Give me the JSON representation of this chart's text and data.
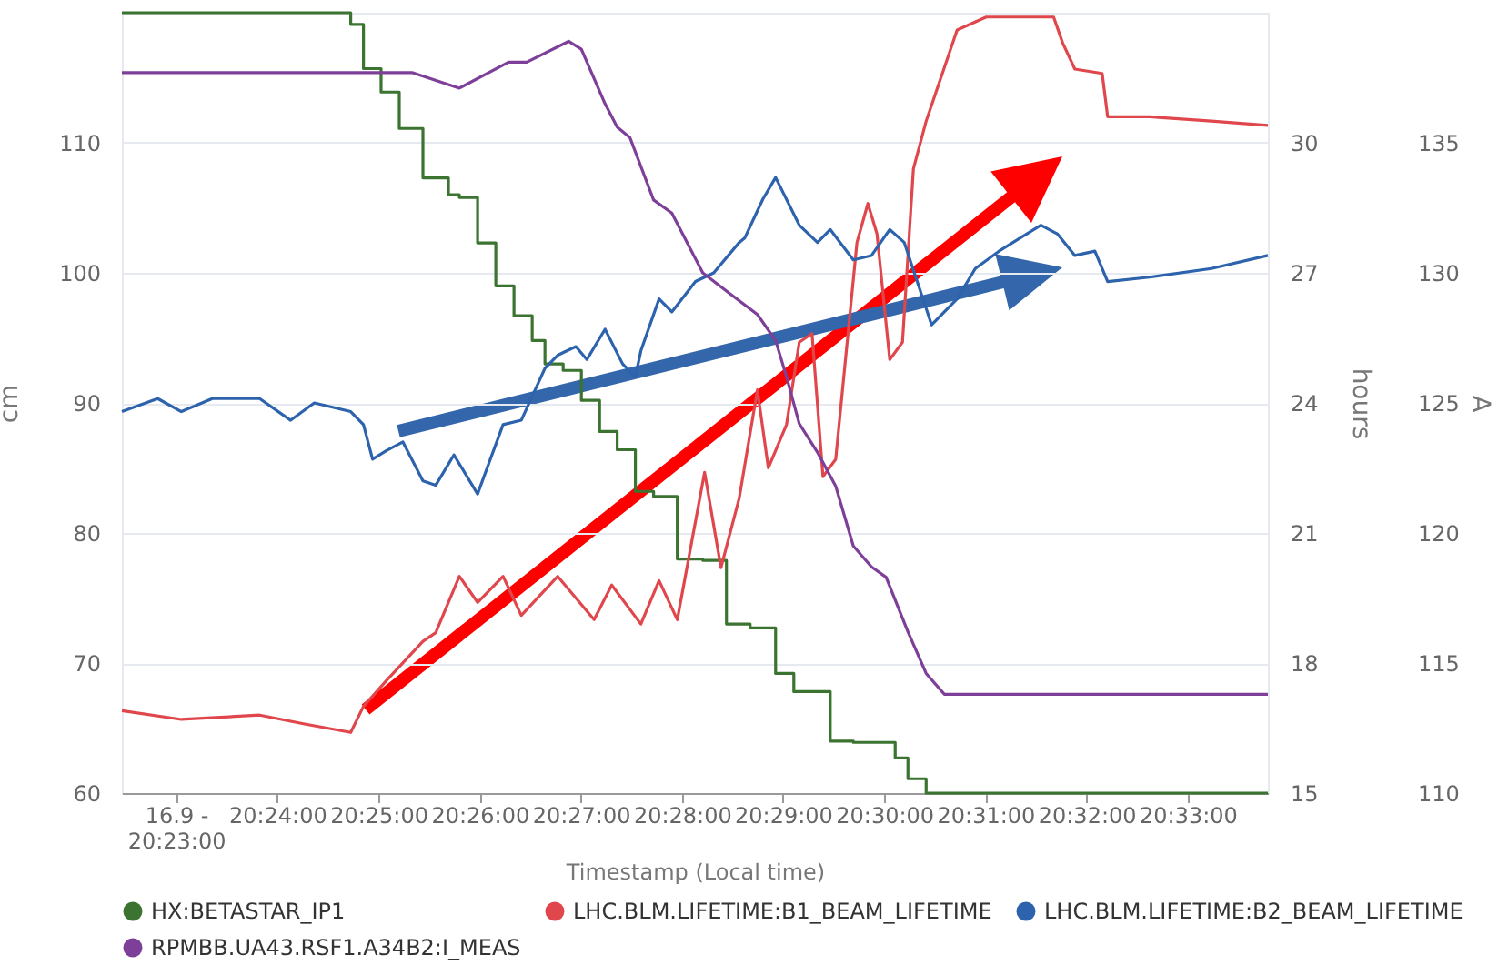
{
  "chart_data": {
    "type": "line",
    "xlabel": "Timestamp (Local time)",
    "ylabel": "cm",
    "y2label": "hours",
    "y3label": "A",
    "xlim": [
      20.3744,
      20.5632
    ],
    "xticks": [
      {
        "value": 20.38333,
        "label": "16.9 - 20:23:00"
      },
      {
        "value": 20.4,
        "label": "20:24:00"
      },
      {
        "value": 20.41667,
        "label": "20:25:00"
      },
      {
        "value": 20.43333,
        "label": "20:26:00"
      },
      {
        "value": 20.45,
        "label": "20:27:00"
      },
      {
        "value": 20.46667,
        "label": "20:28:00"
      },
      {
        "value": 20.48333,
        "label": "20:29:00"
      },
      {
        "value": 20.5,
        "label": "20:30:00"
      },
      {
        "value": 20.51667,
        "label": "20:31:00"
      },
      {
        "value": 20.53333,
        "label": "20:32:00"
      },
      {
        "value": 20.55,
        "label": "20:33:00"
      }
    ],
    "ylim": [
      60,
      120
    ],
    "yticks": [
      60,
      70,
      80,
      90,
      100,
      110
    ],
    "y2lim": [
      15,
      33
    ],
    "y2ticks": [
      15,
      18,
      21,
      24,
      27,
      30
    ],
    "y3lim": [
      110,
      140
    ],
    "y3ticks": [
      110,
      115,
      120,
      125,
      130,
      135
    ],
    "grid": "y",
    "legend": "bottom",
    "marker": "none",
    "line_style": "solid",
    "series": [
      {
        "name": "HX:BETASTAR_IP1",
        "type": "step",
        "color": "#3b7430",
        "x": [
          20.3744,
          20.4121,
          20.4142,
          20.4171,
          20.4201,
          20.424,
          20.4282,
          20.43,
          20.433,
          20.436,
          20.439,
          20.442,
          20.4441,
          20.4471,
          20.4501,
          20.4531,
          20.456,
          20.459,
          20.462,
          20.4659,
          20.4701,
          20.474,
          20.4779,
          20.4821,
          20.4851,
          20.4869,
          20.4911,
          20.4949,
          20.5018,
          20.5039,
          20.5069,
          20.509,
          20.5632
        ],
        "values": [
          120,
          119.1,
          115.7,
          113.9,
          111.1,
          107.3,
          106,
          105.8,
          102.3,
          99,
          96.7,
          94.8,
          93,
          92.5,
          90.2,
          87.8,
          86.4,
          83.2,
          82.8,
          78,
          77.9,
          73,
          72.7,
          69.2,
          67.8,
          67.8,
          64,
          63.9,
          62.7,
          61.1,
          60,
          60,
          60
        ]
      },
      {
        "name": "LHC.BLM.LIFETIME:B1_BEAM_LIFETIME",
        "type": "line",
        "axis": "y2",
        "color": "#e0474c",
        "x": [
          20.3744,
          20.3842,
          20.3971,
          20.4043,
          20.4121,
          20.4142,
          20.418,
          20.424,
          20.4261,
          20.43,
          20.433,
          20.4372,
          20.4402,
          20.4462,
          20.4522,
          20.4551,
          20.4599,
          20.4629,
          20.4659,
          20.4704,
          20.4731,
          20.4761,
          20.4791,
          20.4809,
          20.4839,
          20.486,
          20.4881,
          20.4899,
          20.492,
          20.4955,
          20.4973,
          20.4988,
          20.5009,
          20.503,
          20.5048,
          20.5069,
          20.512,
          20.5168,
          20.521,
          20.5279,
          20.5294,
          20.5314,
          20.5359,
          20.5368,
          20.5437,
          20.5539,
          20.5632
        ],
        "values": [
          16.9,
          16.7,
          16.8,
          16.6,
          16.4,
          17,
          17.6,
          18.5,
          18.7,
          20,
          19.4,
          20,
          19.1,
          20,
          19,
          19.8,
          18.9,
          19.9,
          19,
          22.4,
          20.2,
          21.8,
          24.3,
          22.5,
          23.5,
          25.4,
          25.6,
          22.3,
          22.7,
          27.7,
          28.6,
          27.9,
          25,
          25.4,
          29.4,
          30.5,
          32.6,
          32.9,
          32.9,
          32.9,
          32.3,
          31.7,
          31.6,
          30.6,
          30.6,
          30.5,
          30.4
        ]
      },
      {
        "name": "LHC.BLM.LIFETIME:B2_BEAM_LIFETIME",
        "type": "line",
        "axis": "y2",
        "color": "#2d63ad",
        "x": [
          20.3744,
          20.3803,
          20.3842,
          20.3893,
          20.3971,
          20.4022,
          20.4061,
          20.4121,
          20.4142,
          20.4157,
          20.418,
          20.4207,
          20.424,
          20.4261,
          20.4291,
          20.433,
          20.4372,
          20.4402,
          20.4441,
          20.4462,
          20.4492,
          20.451,
          20.454,
          20.4569,
          20.459,
          20.4599,
          20.4629,
          20.465,
          20.4689,
          20.4719,
          20.4761,
          20.477,
          20.48,
          20.4821,
          20.486,
          20.489,
          20.4911,
          20.4949,
          20.4979,
          20.5009,
          20.5033,
          20.5078,
          20.512,
          20.515,
          20.5189,
          20.5258,
          20.5285,
          20.5314,
          20.5347,
          20.5368,
          20.5437,
          20.5539,
          20.5632
        ],
        "values": [
          23.8,
          24.1,
          23.8,
          24.1,
          24.1,
          23.6,
          24,
          23.8,
          23.5,
          22.7,
          22.9,
          23.1,
          22.2,
          22.1,
          22.8,
          21.9,
          23.5,
          23.6,
          24.8,
          25.1,
          25.3,
          25,
          25.7,
          24.9,
          24.6,
          25.2,
          26.4,
          26.1,
          26.8,
          27,
          27.7,
          27.8,
          28.7,
          29.2,
          28.1,
          27.7,
          28,
          27.3,
          27.4,
          28,
          27.7,
          25.8,
          26.4,
          27.1,
          27.5,
          28.1,
          27.9,
          27.4,
          27.5,
          26.8,
          26.9,
          27.1,
          27.4
        ]
      },
      {
        "name": "RPMBB.UA43.RSF1.A34B2:I_MEAS",
        "type": "line",
        "axis": "y3",
        "color": "#7d3f98",
        "x": [
          20.3744,
          20.418,
          20.4222,
          20.43,
          20.4381,
          20.4411,
          20.448,
          20.4501,
          20.454,
          20.456,
          20.4581,
          20.462,
          20.465,
          20.4701,
          20.474,
          20.4791,
          20.4821,
          20.4839,
          20.486,
          20.489,
          20.492,
          20.4949,
          20.4979,
          20.5003,
          20.5039,
          20.5069,
          20.5099,
          20.5632
        ],
        "values": [
          137.7,
          137.7,
          137.7,
          137.1,
          138.1,
          138.1,
          138.9,
          138.6,
          136.5,
          135.6,
          135.2,
          132.8,
          132.3,
          130,
          129.3,
          128.4,
          127.4,
          126,
          124.2,
          123.1,
          121.8,
          119.5,
          118.7,
          118.3,
          116.2,
          114.6,
          113.8,
          113.8
        ]
      }
    ]
  }
}
